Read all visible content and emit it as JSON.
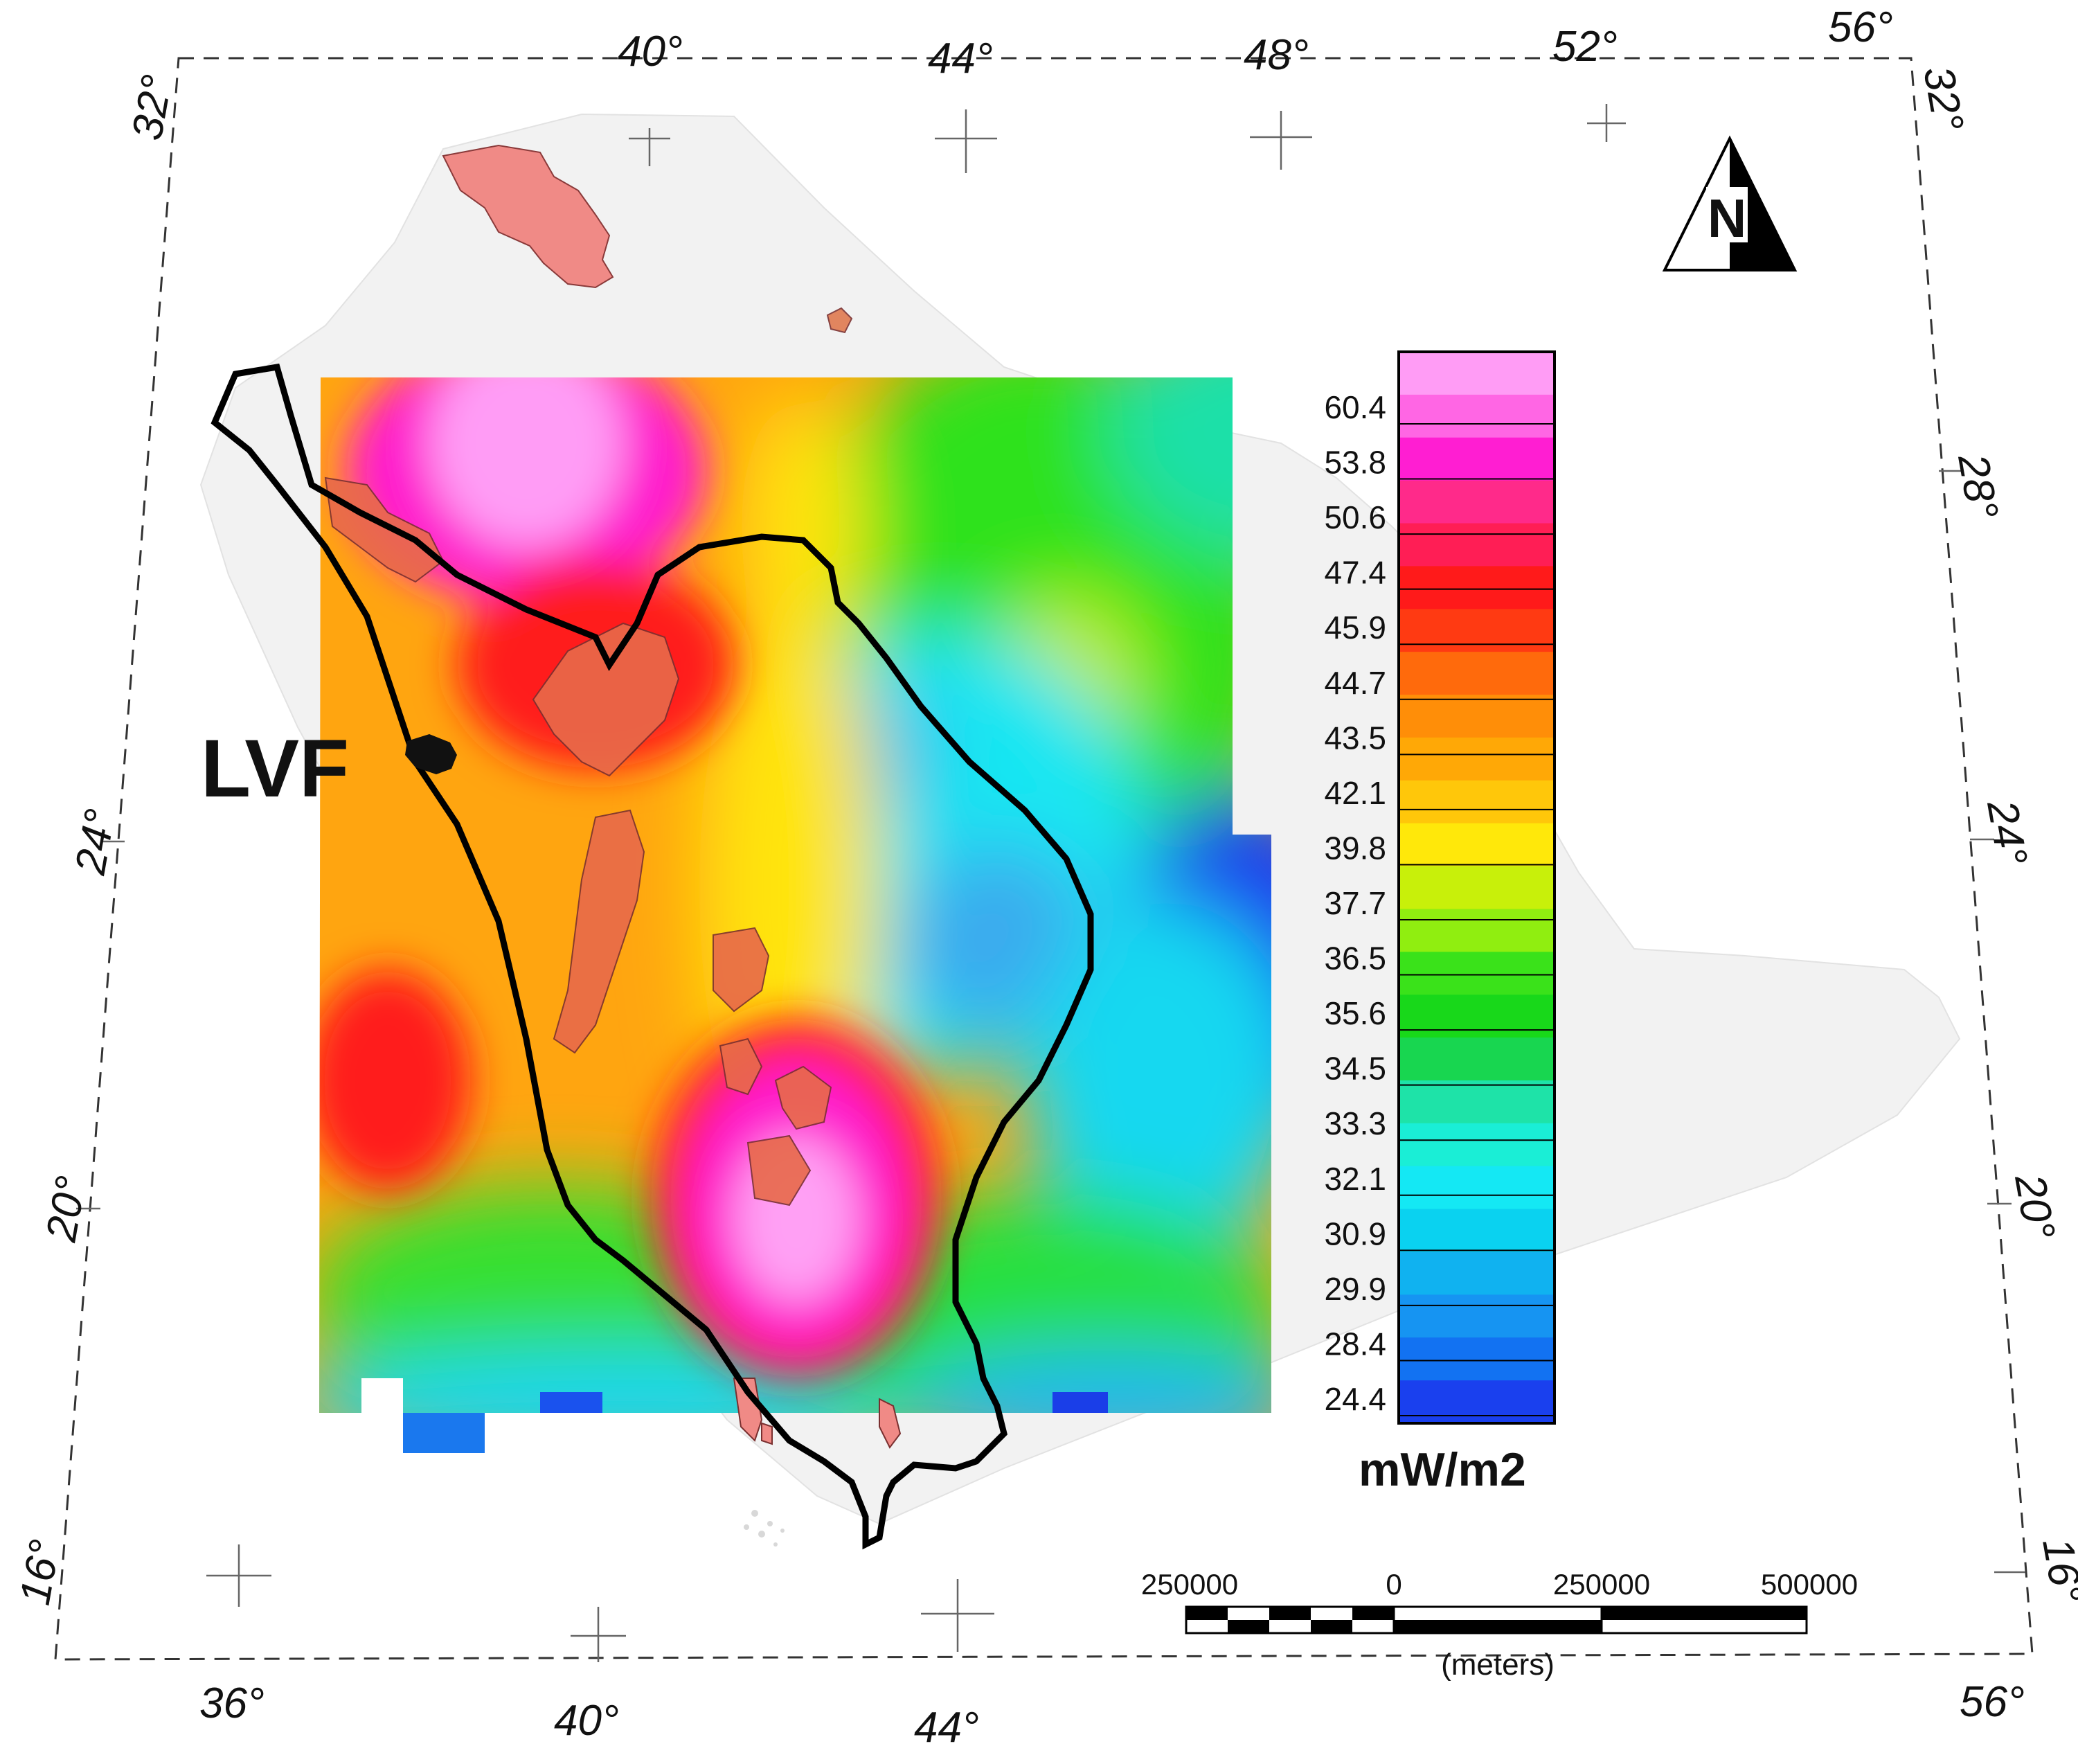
{
  "map": {
    "graticule": {
      "top_lon_labels": [
        "40°",
        "44°",
        "48°",
        "52°",
        "56°"
      ],
      "bottom_lon_labels": [
        "36°",
        "40°",
        "44°",
        "56°"
      ],
      "left_lat_labels": [
        "32°",
        "24°",
        "20°",
        "16°"
      ],
      "right_lat_labels": [
        "32°",
        "28°",
        "24°",
        "20°",
        "16°"
      ]
    },
    "feature_label": "LVF",
    "north_arrow": {
      "letter": "N",
      "icon": "north-arrow-icon"
    },
    "legend": {
      "unit": "mW/m2",
      "values": [
        "60.4",
        "53.8",
        "50.6",
        "47.4",
        "45.9",
        "44.7",
        "43.5",
        "42.1",
        "39.8",
        "37.7",
        "36.5",
        "35.6",
        "34.5",
        "33.3",
        "32.1",
        "30.9",
        "29.9",
        "28.4",
        "24.4"
      ],
      "colors": [
        "#ff9cf5",
        "#ff66e4",
        "#ff1ed2",
        "#ff2a8a",
        "#ff1e55",
        "#ff1a1a",
        "#ff3a12",
        "#ff6a0c",
        "#ff8e08",
        "#ffa806",
        "#ffc70a",
        "#ffe80a",
        "#c8f00a",
        "#90ee10",
        "#3ae21a",
        "#18d81a",
        "#18d650",
        "#1ee3a8",
        "#1aeed6",
        "#14e8f4",
        "#0ad2f0",
        "#10b2f0",
        "#1694f2",
        "#1272f2",
        "#1a40ee"
      ]
    },
    "scale_bar": {
      "labels": [
        "250000",
        "0",
        "250000",
        "500000"
      ],
      "unit": "(meters)"
    }
  }
}
